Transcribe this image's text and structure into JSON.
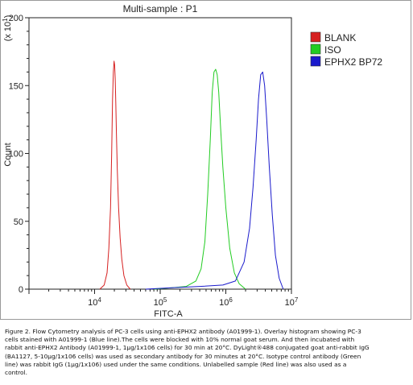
{
  "chart_data": {
    "type": "line",
    "title": "Multi-sample : P1",
    "xlabel": "FITC-A",
    "ylabel": "Count",
    "y_multiplier": "(x 10^1)",
    "x_scale": "log",
    "xlim": [
      1000,
      10000000
    ],
    "ylim": [
      0,
      200
    ],
    "x_ticks": [
      {
        "value": 10000,
        "base": "10",
        "exp": "4"
      },
      {
        "value": 100000,
        "base": "10",
        "exp": "5"
      },
      {
        "value": 1000000,
        "base": "10",
        "exp": "6"
      },
      {
        "value": 10000000,
        "base": "10",
        "exp": "7"
      }
    ],
    "y_ticks": [
      0,
      50,
      100,
      150,
      200
    ],
    "grid": false,
    "legend_position": "top-right",
    "series": [
      {
        "name": "BLANK",
        "color": "#d62020",
        "x": [
          12000,
          14000,
          15500,
          16500,
          17500,
          18200,
          18800,
          19300,
          19800,
          20200,
          20600,
          21000,
          21500,
          22200,
          23200,
          24500,
          26000,
          28000,
          31000,
          35000
        ],
        "y": [
          0,
          3,
          12,
          30,
          60,
          100,
          140,
          160,
          168,
          165,
          155,
          138,
          115,
          88,
          60,
          38,
          22,
          10,
          3,
          0
        ]
      },
      {
        "name": "ISO",
        "color": "#22cc22",
        "x": [
          80000,
          150000,
          250000,
          350000,
          420000,
          480000,
          530000,
          580000,
          620000,
          660000,
          700000,
          740000,
          780000,
          830000,
          900000,
          1000000,
          1150000,
          1350000,
          1600000,
          2000000
        ],
        "y": [
          0,
          1,
          2,
          6,
          15,
          35,
          70,
          110,
          145,
          160,
          162,
          158,
          145,
          120,
          90,
          60,
          30,
          12,
          4,
          0
        ]
      },
      {
        "name": "EPHX2 BP72",
        "color": "#1a1acc",
        "x": [
          60000,
          150000,
          400000,
          900000,
          1400000,
          1900000,
          2300000,
          2600000,
          2900000,
          3150000,
          3400000,
          3650000,
          3900000,
          4200000,
          4600000,
          5100000,
          5700000,
          6500000,
          7500000
        ],
        "y": [
          0,
          1,
          2,
          3,
          6,
          20,
          45,
          75,
          110,
          140,
          158,
          160,
          150,
          125,
          90,
          55,
          25,
          8,
          0
        ]
      }
    ]
  },
  "caption": {
    "line1": "Figure 2. Flow Cytometry analysis of PC-3 cells using anti-EPHX2 antibody (A01999-1).  Overlay histogram showing PC-3",
    "line2": "cells stained with A01999-1 (Blue line).The cells were blocked with 10% normal goat serum.  And then incubated with",
    "line3": "rabbit anti-EPHX2 Antibody (A01999-1, 1µg/1x106 cells) for 30 min at 20°C. DyLight®488 conjugated goat anti-rabbit IgG",
    "line4": "(BA1127, 5-10µg/1x106 cells) was used as secondary antibody for 30 minutes at 20°C. Isotype control antibody (Green",
    "line5": "line) was rabbit IgG (1µg/1x106) used under the same conditions. Unlabelled sample (Red line) was also used as a",
    "line6": "control."
  }
}
